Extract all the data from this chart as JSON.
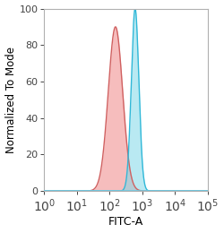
{
  "title": "",
  "xlabel": "FITC-A",
  "ylabel": "Normalized To Mode",
  "xlim": [
    1,
    100000
  ],
  "ylim": [
    0,
    100
  ],
  "yticks": [
    0,
    20,
    40,
    60,
    80,
    100
  ],
  "red_peak_log_mean": 2.18,
  "red_peak_log_std": 0.22,
  "red_peak_height": 90,
  "blue_peak_log_mean": 2.78,
  "blue_peak_log_std": 0.115,
  "blue_peak_height": 100,
  "red_fill_color": "#f08888",
  "red_edge_color": "#d06060",
  "blue_fill_color": "#80d8e8",
  "blue_edge_color": "#30b8d8",
  "fill_alpha": 0.55,
  "background_color": "#ffffff",
  "spine_color": "#b0b0b0",
  "baseline_color": "#70c8e0",
  "ylabel_fontsize": 8.5,
  "xlabel_fontsize": 9,
  "tick_fontsize": 8,
  "line_width": 1.0
}
